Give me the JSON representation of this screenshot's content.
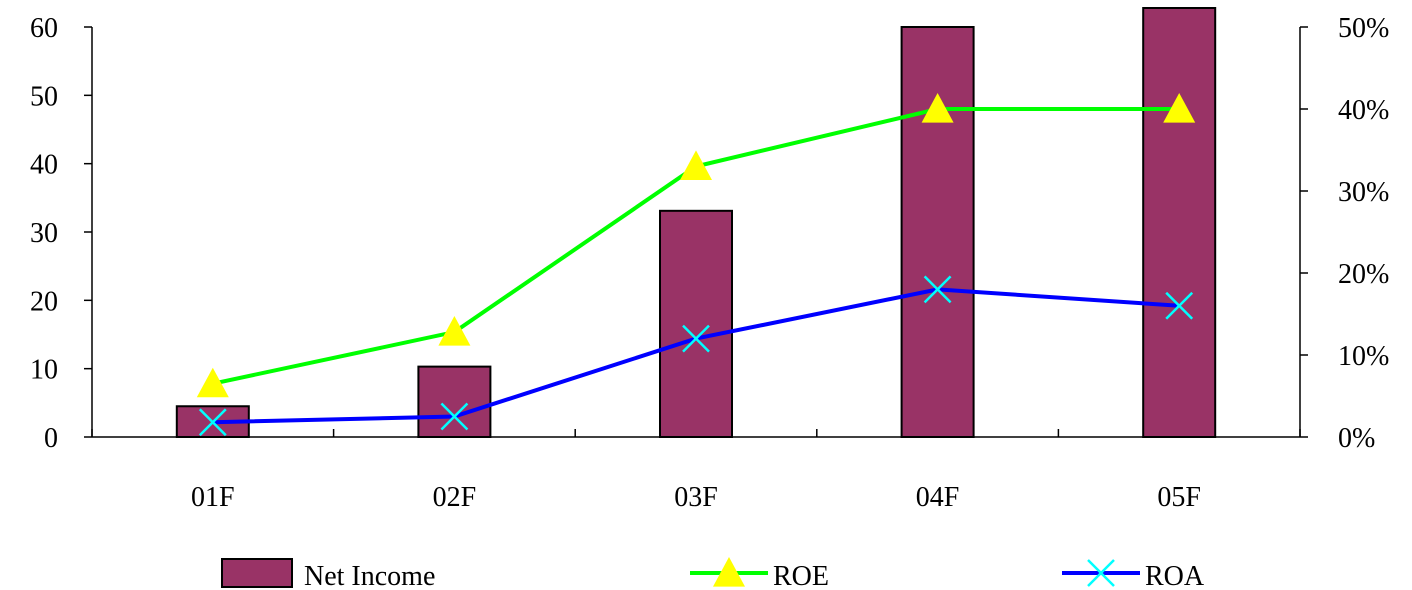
{
  "chart_data": {
    "type": "bar",
    "categories": [
      "01F",
      "02F",
      "03F",
      "04F",
      "05F"
    ],
    "series": [
      {
        "name": "Net Income",
        "type": "bar",
        "axis": "left",
        "color": "#993366",
        "values": [
          4.5,
          10.3,
          33.1,
          60.0,
          63.0
        ]
      },
      {
        "name": "ROE",
        "type": "line",
        "axis": "right",
        "color": "#00ff00",
        "marker": "triangle",
        "marker_color": "#ffff00",
        "values": [
          0.065,
          0.128,
          0.33,
          0.4,
          0.4
        ]
      },
      {
        "name": "ROA",
        "type": "line",
        "axis": "right",
        "color": "#0000ff",
        "marker": "x",
        "marker_color": "#00ffff",
        "values": [
          0.018,
          0.025,
          0.12,
          0.18,
          0.16
        ]
      }
    ],
    "y_left": {
      "min": 0,
      "max": 60,
      "ticks": [
        0,
        10,
        20,
        30,
        40,
        50,
        60
      ],
      "tick_labels": [
        "0",
        "10",
        "20",
        "30",
        "40",
        "50",
        "60"
      ]
    },
    "y_right": {
      "min": 0,
      "max": 0.5,
      "ticks": [
        0,
        0.1,
        0.2,
        0.3,
        0.4,
        0.5
      ],
      "tick_labels": [
        "0%",
        "10%",
        "20%",
        "30%",
        "40%",
        "50%"
      ]
    },
    "legend": {
      "position": "bottom",
      "entries": [
        "Net Income",
        "ROE",
        "ROA"
      ]
    },
    "grid": false,
    "title": "",
    "xlabel": "",
    "ylabel": ""
  }
}
